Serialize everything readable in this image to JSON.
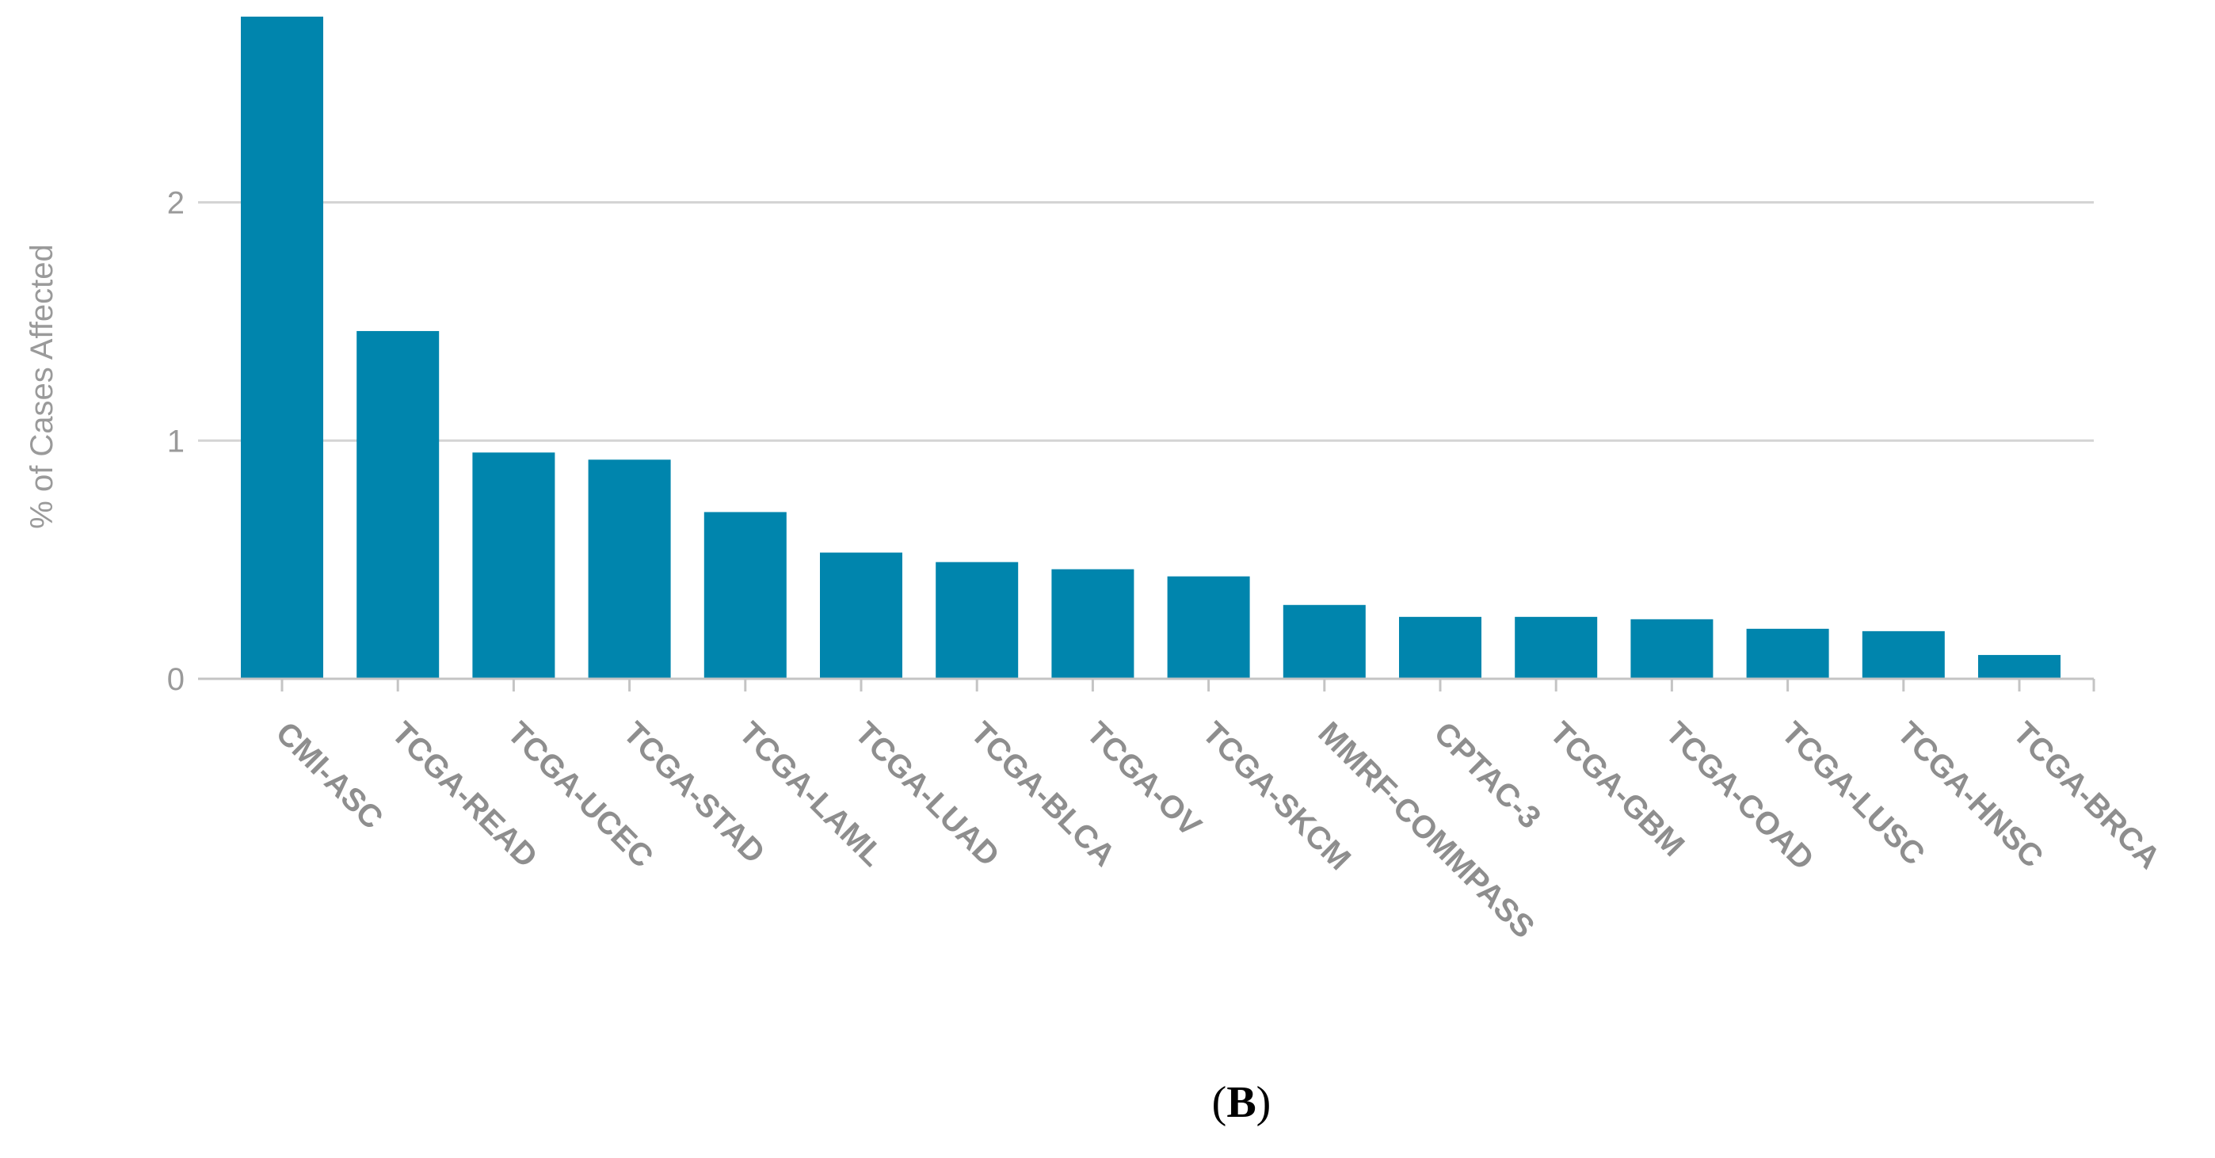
{
  "chart_data": {
    "type": "bar",
    "ylabel": "% of Cases Affected",
    "xlabel": "",
    "ylim": [
      0,
      2.78
    ],
    "yticks": [
      0,
      1,
      2
    ],
    "grid": true,
    "bar_color": "#0085AD",
    "categories": [
      "CMI-ASC",
      "TCGA-READ",
      "TCGA-UCEC",
      "TCGA-STAD",
      "TCGA-LAML",
      "TCGA-LUAD",
      "TCGA-BLCA",
      "TCGA-OV",
      "TCGA-SKCM",
      "MMRF-COMMPASS",
      "CPTAC-3",
      "TCGA-GBM",
      "TCGA-COAD",
      "TCGA-LUSC",
      "TCGA-HNSC",
      "TCGA-BRCA"
    ],
    "values": [
      2.78,
      1.46,
      0.95,
      0.92,
      0.7,
      0.53,
      0.49,
      0.46,
      0.43,
      0.31,
      0.26,
      0.26,
      0.25,
      0.21,
      0.2,
      0.1
    ]
  },
  "panel": {
    "open": "(",
    "letter": "B",
    "close": ")"
  }
}
